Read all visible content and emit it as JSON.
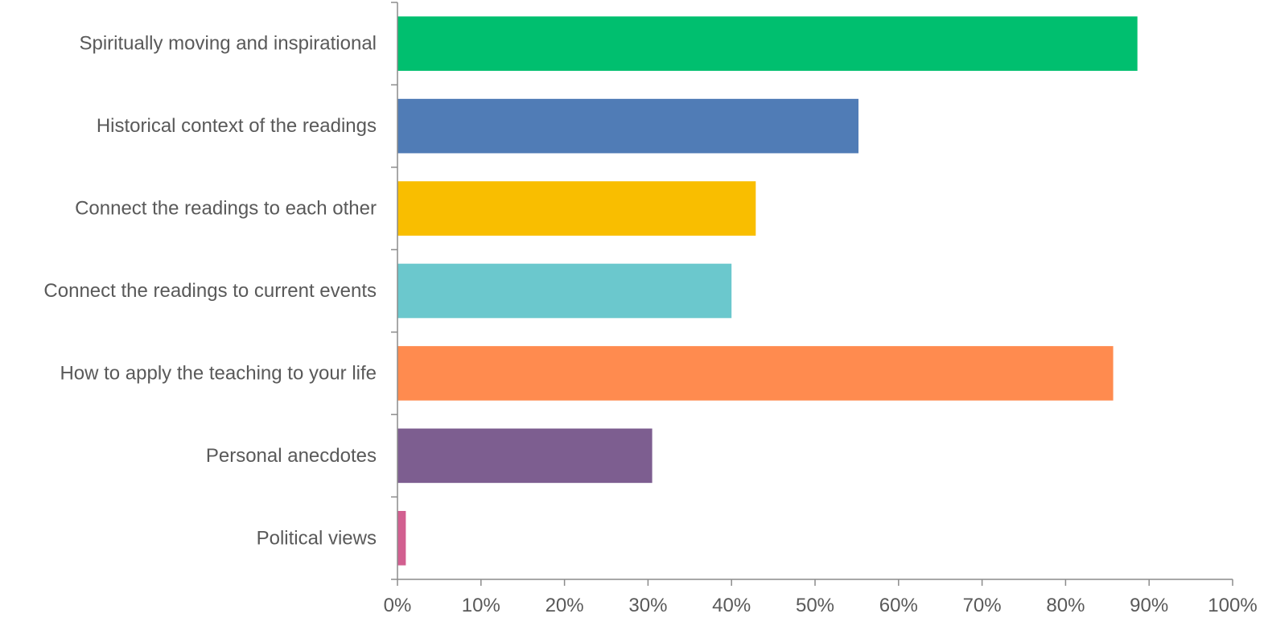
{
  "chart_data": {
    "type": "bar",
    "orientation": "horizontal",
    "categories": [
      "Spiritually moving and inspirational",
      "Historical context of the readings",
      "Connect the readings to each other",
      "Connect the readings to current events",
      "How to apply the teaching to your life",
      "Personal anecdotes",
      "Political views"
    ],
    "values": [
      88.6,
      55.2,
      42.9,
      40.0,
      85.7,
      30.5,
      1.0
    ],
    "colors": [
      "#00bf6f",
      "#507cb6",
      "#f9be00",
      "#6bc8cd",
      "#ff8b4f",
      "#7d5e90",
      "#d25f90"
    ],
    "xlim": [
      0,
      100
    ],
    "x_ticks": [
      "0%",
      "10%",
      "20%",
      "30%",
      "40%",
      "50%",
      "60%",
      "70%",
      "80%",
      "90%",
      "100%"
    ],
    "grid": false,
    "legend": "none"
  }
}
